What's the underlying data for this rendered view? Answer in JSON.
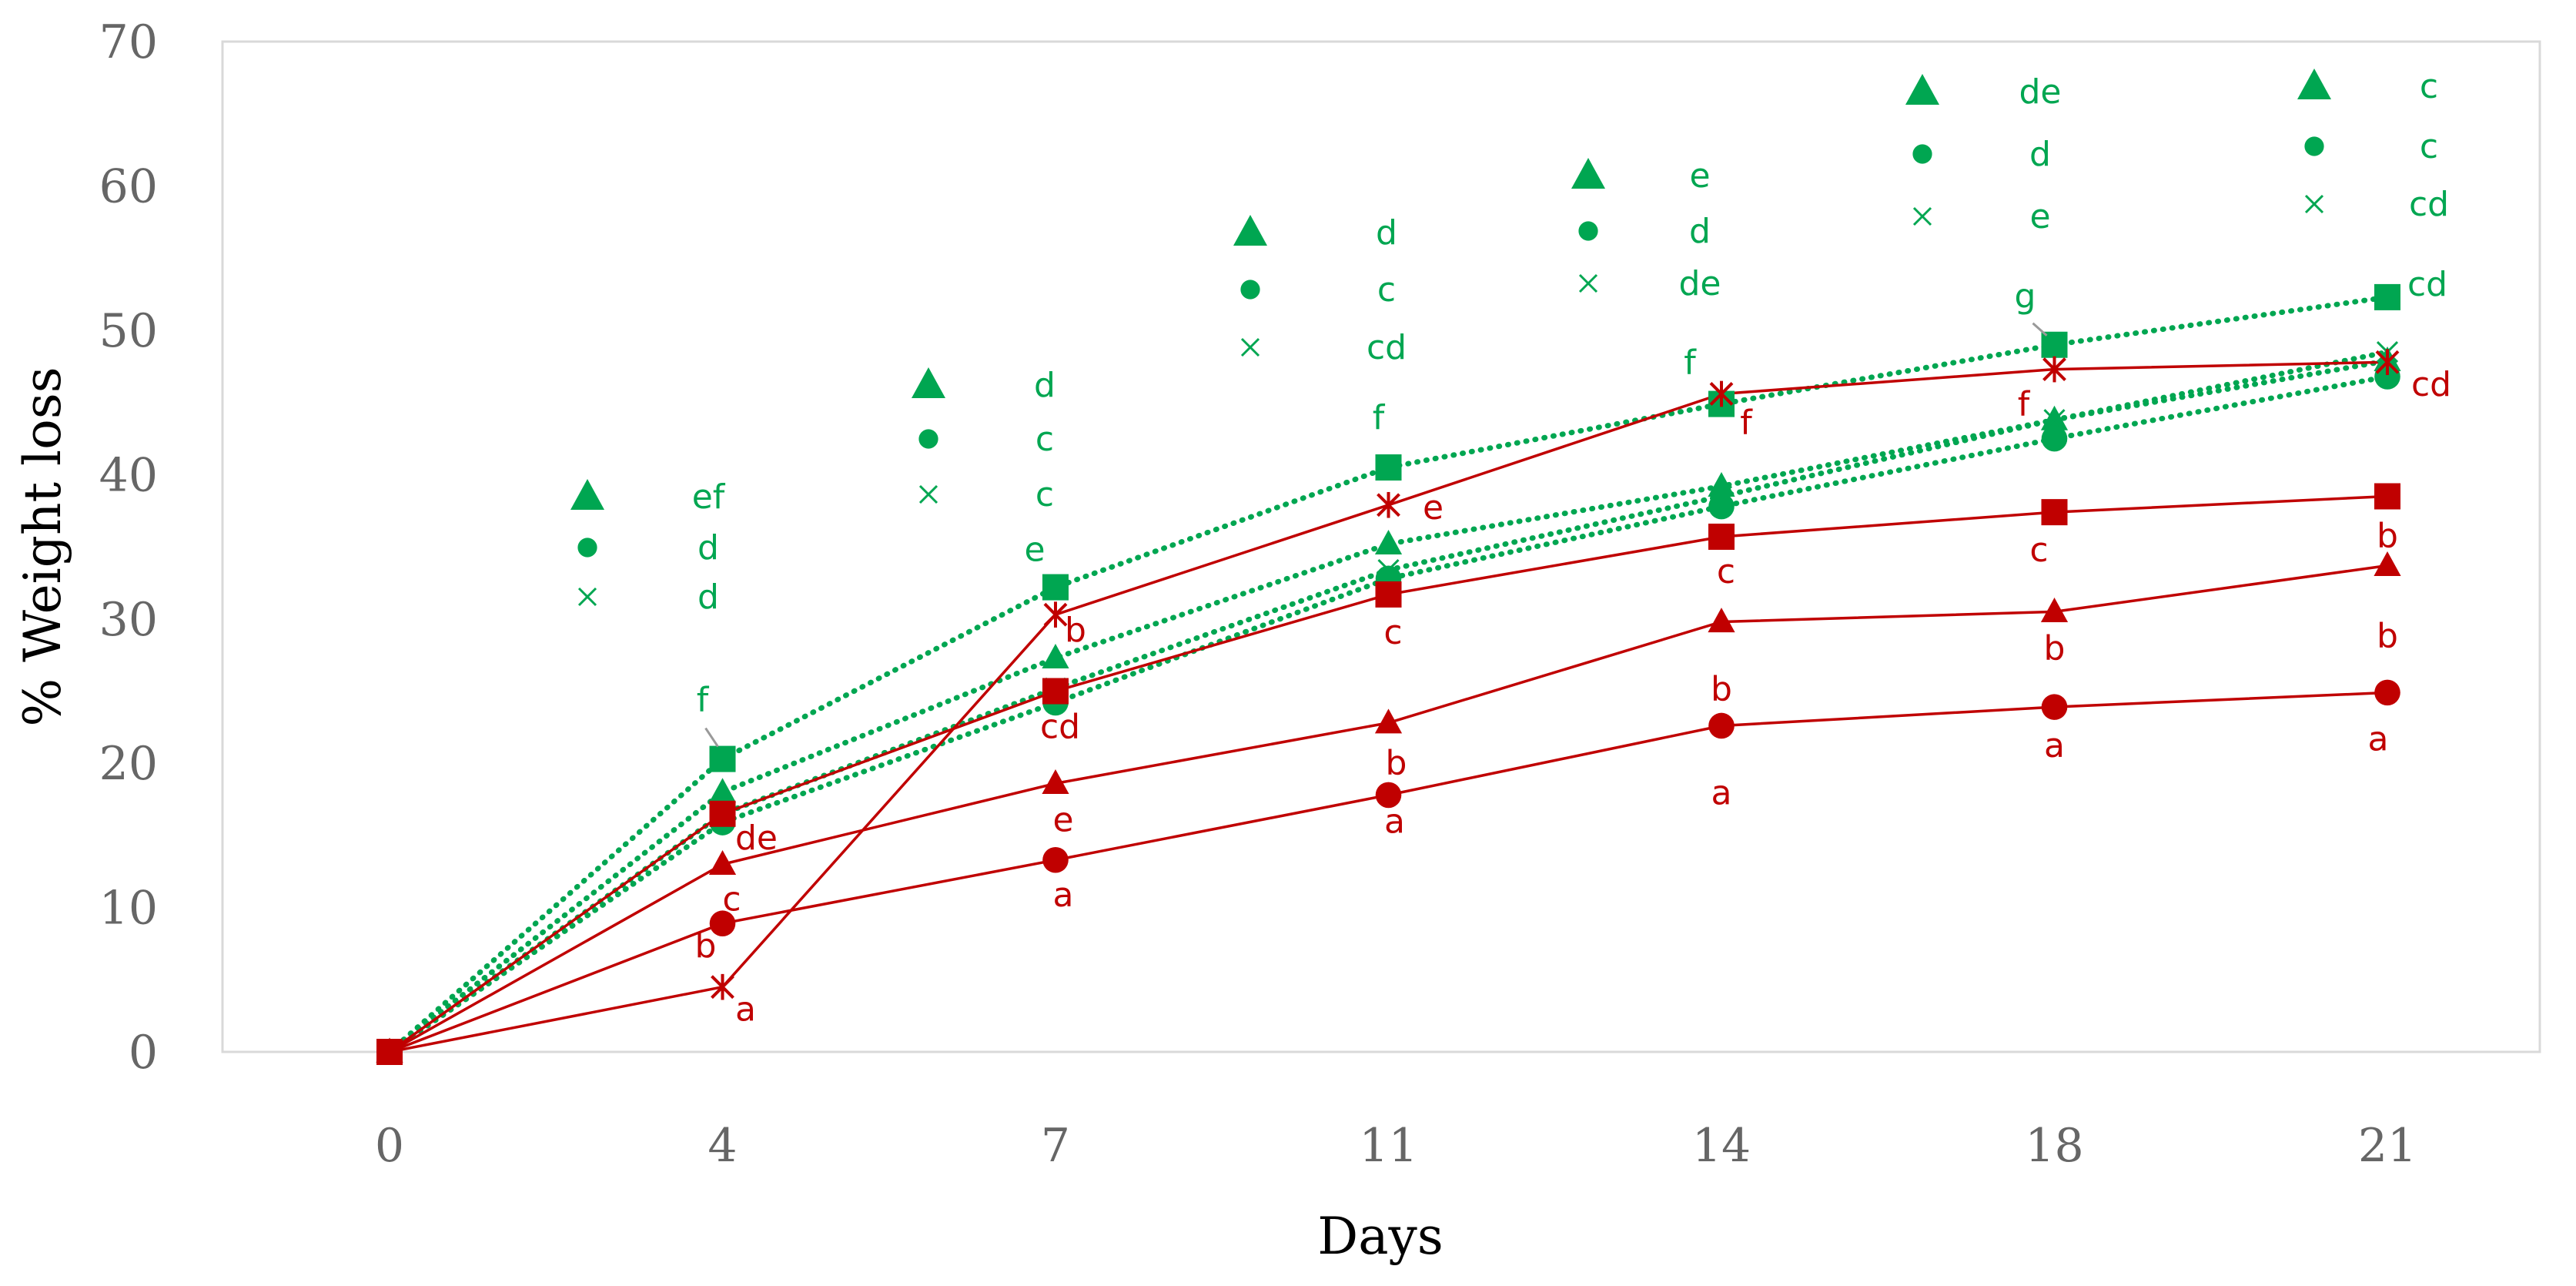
{
  "chart_data": {
    "type": "line",
    "xlabel": "Days",
    "ylabel": "% Weight loss",
    "ylim": [
      0,
      70
    ],
    "yticks": [
      "0",
      "10",
      "20",
      "30",
      "40",
      "50",
      "60",
      "70"
    ],
    "categories": [
      "0",
      "4",
      "7",
      "11",
      "14",
      "18",
      "21"
    ],
    "colors": {
      "green": "#00a651",
      "red": "#c00000",
      "leader": "#999999"
    },
    "series": [
      {
        "name": "green-square",
        "group": "green",
        "marker": "square",
        "values": [
          0,
          20.3,
          32.2,
          40.5,
          44.9,
          49.0,
          52.3
        ],
        "labels": [
          "",
          "f",
          "e",
          "f",
          "f",
          "g",
          "cd"
        ]
      },
      {
        "name": "green-triangle",
        "group": "green",
        "marker": "triangle",
        "values": [
          0,
          18.0,
          27.3,
          35.2,
          39.2,
          43.8,
          47.9
        ]
      },
      {
        "name": "green-circle",
        "group": "green",
        "marker": "circle",
        "values": [
          0,
          15.9,
          24.2,
          32.8,
          37.8,
          42.5,
          46.8
        ]
      },
      {
        "name": "green-cross",
        "group": "green",
        "marker": "x",
        "values": [
          0,
          16.5,
          25.2,
          33.4,
          38.5,
          43.8,
          48.5
        ]
      },
      {
        "name": "red-asterisk",
        "group": "red",
        "marker": "asterisk",
        "values": [
          0,
          4.5,
          30.3,
          37.9,
          45.6,
          47.3,
          47.8
        ],
        "labels": [
          "",
          "a",
          "b",
          "e",
          "f",
          "f",
          "cd"
        ]
      },
      {
        "name": "red-square",
        "group": "red",
        "marker": "square",
        "values": [
          0,
          16.5,
          25.0,
          31.7,
          35.7,
          37.4,
          38.5
        ],
        "labels": [
          "",
          "de",
          "cd",
          "c",
          "c",
          "c",
          "b"
        ]
      },
      {
        "name": "red-triangle",
        "group": "red",
        "marker": "triangle",
        "values": [
          0,
          13.0,
          18.6,
          22.8,
          29.8,
          30.5,
          33.7
        ],
        "labels": [
          "",
          "c",
          "e",
          "b",
          "b",
          "b",
          "b"
        ]
      },
      {
        "name": "red-circle",
        "group": "red",
        "marker": "circle",
        "values": [
          0,
          8.9,
          13.3,
          17.8,
          22.6,
          23.9,
          24.9
        ],
        "labels": [
          "",
          "b",
          "a",
          "a",
          "a",
          "a",
          "a"
        ]
      }
    ],
    "legend_groups": [
      {
        "day": "4",
        "entries": [
          {
            "marker": "triangle",
            "label": "ef"
          },
          {
            "marker": "circle",
            "label": "d"
          },
          {
            "marker": "x",
            "label": "d"
          }
        ]
      },
      {
        "day": "7",
        "entries": [
          {
            "marker": "triangle",
            "label": "d"
          },
          {
            "marker": "circle",
            "label": "c"
          },
          {
            "marker": "x",
            "label": "c"
          }
        ]
      },
      {
        "day": "11",
        "entries": [
          {
            "marker": "triangle",
            "label": "d"
          },
          {
            "marker": "circle",
            "label": "c"
          },
          {
            "marker": "x",
            "label": "cd"
          }
        ]
      },
      {
        "day": "14",
        "entries": [
          {
            "marker": "triangle",
            "label": "e"
          },
          {
            "marker": "circle",
            "label": "d"
          },
          {
            "marker": "x",
            "label": "de"
          }
        ]
      },
      {
        "day": "18",
        "entries": [
          {
            "marker": "triangle",
            "label": "de"
          },
          {
            "marker": "circle",
            "label": "d"
          },
          {
            "marker": "x",
            "label": "e"
          }
        ]
      },
      {
        "day": "21",
        "entries": [
          {
            "marker": "triangle",
            "label": "c"
          },
          {
            "marker": "circle",
            "label": "c"
          },
          {
            "marker": "x",
            "label": "cd"
          }
        ]
      }
    ]
  }
}
